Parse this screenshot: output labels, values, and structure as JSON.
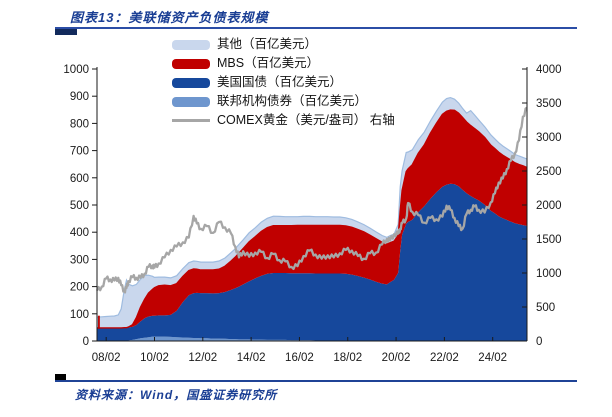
{
  "header": {
    "title": "图表13：美联储资产负债表规模"
  },
  "footer": {
    "source": "资料来源：Wind，国盛证券研究所"
  },
  "colors": {
    "title_blue": "#1A3E94",
    "rule_blue": "#2B4DA6",
    "rule_dark_block": "#122A5C",
    "axis_text": "#1a1a1a"
  },
  "chart_data": {
    "type": "area",
    "stacked": true,
    "title": "美联储资产负债表规模",
    "grid": false,
    "legend_position": "top",
    "legend": [
      {
        "key": "other",
        "label": "其他（百亿美元）",
        "swatch": "area"
      },
      {
        "key": "mbs",
        "label": "MBS（百亿美元）",
        "swatch": "area"
      },
      {
        "key": "treasury",
        "label": "美国国债（百亿美元）",
        "swatch": "area"
      },
      {
        "key": "agency",
        "label": "联邦机构债券（百亿美元）",
        "swatch": "area"
      },
      {
        "key": "gold",
        "label": "COMEX黄金（美元/盎司） 右轴",
        "swatch": "line"
      }
    ],
    "series_colors": {
      "other": "#C9D7ED",
      "mbs": "#C00000",
      "treasury": "#16489C",
      "agency": "#6E96CE",
      "gold": "#A6A6A6",
      "other_edge": "#9FBCE0"
    },
    "left_axis": {
      "min": 0,
      "max": 1000,
      "step": 100,
      "tick_labels": [
        "0",
        "100",
        "200",
        "300",
        "400",
        "500",
        "600",
        "700",
        "800",
        "900",
        "1000"
      ]
    },
    "right_axis": {
      "min": 0,
      "max": 4000,
      "step": 500,
      "tick_labels": [
        "0",
        "500",
        "1000",
        "1500",
        "2000",
        "2500",
        "3000",
        "3500",
        "4000"
      ]
    },
    "x_axis": {
      "tick_labels": [
        "08/02",
        "10/02",
        "12/02",
        "14/02",
        "16/02",
        "18/02",
        "20/02",
        "22/02",
        "24/02"
      ],
      "tick_years": [
        2008.08,
        2010.08,
        2012.08,
        2014.08,
        2016.08,
        2018.08,
        2020.08,
        2022.08,
        2024.08
      ]
    },
    "x_domain": [
      2007.7,
      2025.5
    ],
    "stack_order": [
      "agency",
      "treasury",
      "mbs",
      "other"
    ],
    "decorations": {
      "left_edge_spike": {
        "t": 2007.78,
        "from": 45,
        "to": 93
      }
    },
    "points": {
      "columns": [
        "t",
        "agency",
        "treasury",
        "mbs",
        "other",
        "gold"
      ],
      "rows": [
        [
          2007.7,
          0,
          48,
          0,
          40,
          740
        ],
        [
          2007.9,
          0,
          48,
          0,
          41,
          800
        ],
        [
          2008.08,
          0,
          48,
          0,
          42,
          920
        ],
        [
          2008.25,
          0,
          48,
          0,
          43,
          905
        ],
        [
          2008.42,
          0,
          48,
          0,
          44,
          890
        ],
        [
          2008.58,
          0,
          48,
          0,
          48,
          930
        ],
        [
          2008.7,
          0,
          48,
          0,
          70,
          820
        ],
        [
          2008.83,
          1,
          48,
          0,
          140,
          730
        ],
        [
          2008.92,
          1,
          48,
          0,
          175,
          780
        ],
        [
          2009.0,
          2,
          48,
          1,
          158,
          880
        ],
        [
          2009.17,
          4,
          48,
          8,
          143,
          940
        ],
        [
          2009.33,
          7,
          52,
          27,
          122,
          930
        ],
        [
          2009.5,
          10,
          62,
          52,
          103,
          930
        ],
        [
          2009.67,
          12,
          72,
          69,
          88,
          990
        ],
        [
          2009.83,
          14,
          76,
          86,
          66,
          1090
        ],
        [
          2010.0,
          16,
          77,
          97,
          48,
          1110
        ],
        [
          2010.08,
          16,
          77,
          103,
          38,
          1080
        ],
        [
          2010.25,
          16,
          78,
          109,
          32,
          1140
        ],
        [
          2010.5,
          16,
          78,
          111,
          30,
          1230
        ],
        [
          2010.75,
          15,
          81,
          107,
          29,
          1340
        ],
        [
          2011.0,
          14,
          97,
          100,
          29,
          1390
        ],
        [
          2011.25,
          13,
          130,
          94,
          29,
          1450
        ],
        [
          2011.5,
          12,
          156,
          91,
          29,
          1520
        ],
        [
          2011.7,
          11,
          165,
          89,
          29,
          1840
        ],
        [
          2011.83,
          11,
          166,
          87,
          29,
          1730
        ],
        [
          2012.0,
          10,
          166,
          85,
          29,
          1650
        ],
        [
          2012.25,
          10,
          166,
          85,
          29,
          1690
        ],
        [
          2012.5,
          9,
          166,
          86,
          29,
          1590
        ],
        [
          2012.75,
          9,
          167,
          88,
          30,
          1750
        ],
        [
          2013.0,
          8,
          172,
          95,
          30,
          1670
        ],
        [
          2013.25,
          7,
          181,
          106,
          31,
          1580
        ],
        [
          2013.42,
          7,
          187,
          114,
          31,
          1390
        ],
        [
          2013.58,
          6,
          194,
          123,
          32,
          1230
        ],
        [
          2013.75,
          6,
          202,
          132,
          32,
          1320
        ],
        [
          2014.0,
          6,
          214,
          145,
          33,
          1240
        ],
        [
          2014.25,
          5,
          225,
          153,
          33,
          1300
        ],
        [
          2014.5,
          5,
          235,
          163,
          34,
          1310
        ],
        [
          2014.75,
          4,
          243,
          170,
          34,
          1220
        ],
        [
          2015.0,
          4,
          246,
          174,
          35,
          1280
        ],
        [
          2015.25,
          4,
          246,
          174,
          34,
          1190
        ],
        [
          2015.5,
          4,
          246,
          174,
          33,
          1170
        ],
        [
          2015.75,
          3,
          246,
          175,
          33,
          1090
        ],
        [
          2016.0,
          3,
          246,
          176,
          32,
          1100
        ],
        [
          2016.25,
          3,
          246,
          176,
          33,
          1250
        ],
        [
          2016.5,
          3,
          246,
          176,
          33,
          1330
        ],
        [
          2016.75,
          2,
          246,
          177,
          32,
          1270
        ],
        [
          2017.0,
          2,
          246,
          177,
          32,
          1210
        ],
        [
          2017.25,
          2,
          246,
          177,
          32,
          1260
        ],
        [
          2017.5,
          2,
          246,
          177,
          31,
          1230
        ],
        [
          2017.75,
          2,
          246,
          177,
          31,
          1290
        ],
        [
          2018.0,
          2,
          245,
          176,
          30,
          1340
        ],
        [
          2018.25,
          2,
          242,
          174,
          29,
          1330
        ],
        [
          2018.5,
          1,
          238,
          171,
          28,
          1250
        ],
        [
          2018.75,
          1,
          232,
          168,
          27,
          1210
        ],
        [
          2019.0,
          1,
          225,
          163,
          26,
          1290
        ],
        [
          2019.25,
          1,
          217,
          158,
          25,
          1300
        ],
        [
          2019.5,
          1,
          210,
          152,
          25,
          1420
        ],
        [
          2019.7,
          1,
          207,
          148,
          25,
          1500
        ],
        [
          2019.83,
          1,
          215,
          145,
          26,
          1480
        ],
        [
          2020.0,
          1,
          224,
          142,
          26,
          1570
        ],
        [
          2020.17,
          1,
          250,
          138,
          40,
          1580
        ],
        [
          2020.25,
          1,
          330,
          148,
          88,
          1650
        ],
        [
          2020.33,
          1,
          390,
          163,
          72,
          1730
        ],
        [
          2020.5,
          1,
          430,
          192,
          70,
          1800
        ],
        [
          2020.58,
          1,
          437,
          195,
          62,
          2030
        ],
        [
          2020.75,
          1,
          445,
          202,
          55,
          1900
        ],
        [
          2021.0,
          1,
          473,
          216,
          50,
          1850
        ],
        [
          2021.25,
          1,
          495,
          225,
          47,
          1740
        ],
        [
          2021.5,
          1,
          522,
          241,
          45,
          1810
        ],
        [
          2021.75,
          1,
          546,
          253,
          45,
          1790
        ],
        [
          2022.0,
          1,
          566,
          266,
          45,
          1830
        ],
        [
          2022.17,
          1,
          574,
          270,
          46,
          1990
        ],
        [
          2022.33,
          1,
          577,
          271,
          46,
          1930
        ],
        [
          2022.5,
          1,
          576,
          271,
          41,
          1810
        ],
        [
          2022.67,
          1,
          568,
          269,
          37,
          1690
        ],
        [
          2022.83,
          1,
          555,
          266,
          34,
          1650
        ],
        [
          2023.0,
          1,
          542,
          262,
          33,
          1870
        ],
        [
          2023.17,
          1,
          532,
          259,
          55,
          1930
        ],
        [
          2023.33,
          1,
          524,
          256,
          50,
          1980
        ],
        [
          2023.5,
          1,
          516,
          252,
          44,
          1930
        ],
        [
          2023.75,
          1,
          500,
          247,
          40,
          1890
        ],
        [
          2024.0,
          1,
          478,
          241,
          38,
          2040
        ],
        [
          2024.17,
          1,
          468,
          238,
          36,
          2170
        ],
        [
          2024.33,
          1,
          458,
          235,
          35,
          2330
        ],
        [
          2024.5,
          1,
          450,
          232,
          34,
          2390
        ],
        [
          2024.67,
          1,
          444,
          229,
          33,
          2530
        ],
        [
          2024.83,
          1,
          438,
          226,
          32,
          2650
        ],
        [
          2025.0,
          1,
          432,
          222,
          31,
          2760
        ],
        [
          2025.17,
          1,
          428,
          220,
          31,
          2950
        ],
        [
          2025.33,
          1,
          425,
          218,
          31,
          3300
        ],
        [
          2025.5,
          1,
          422,
          215,
          31,
          3430
        ]
      ]
    }
  }
}
